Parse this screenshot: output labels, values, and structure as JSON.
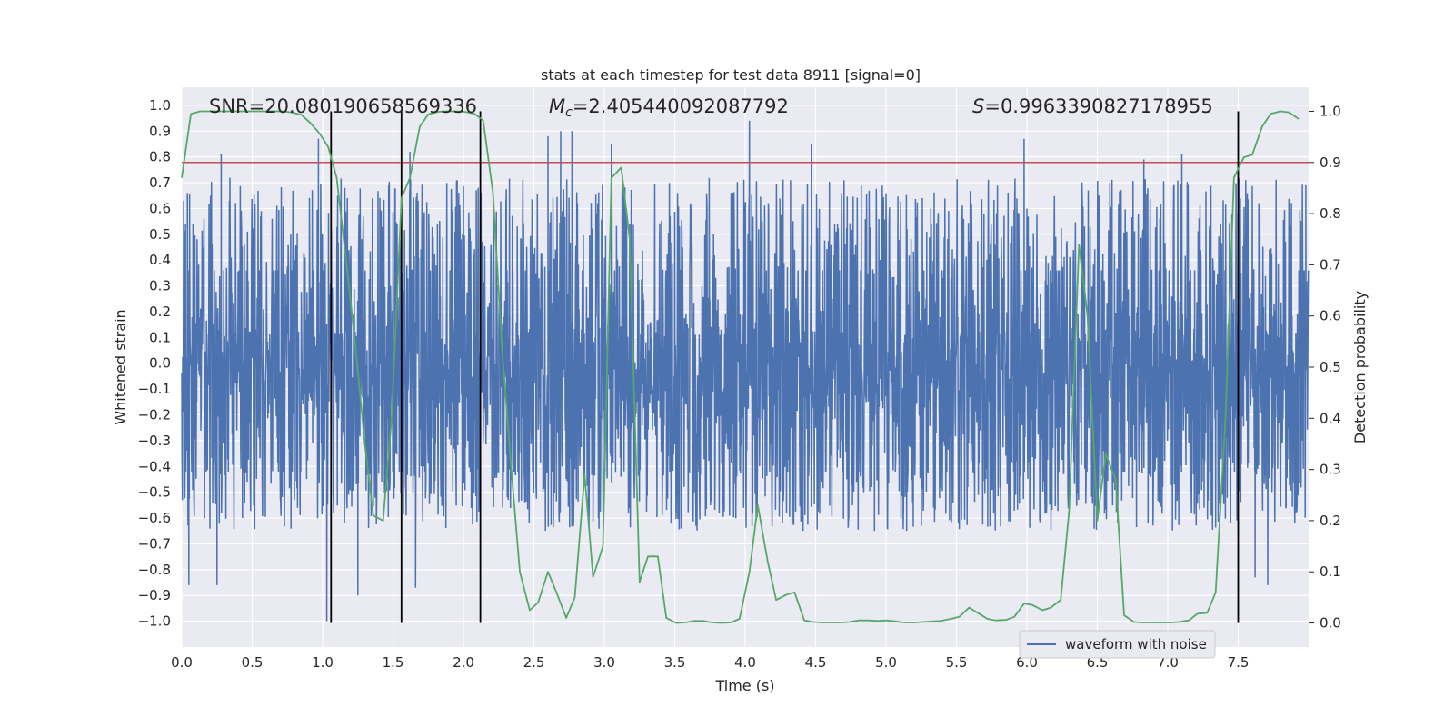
{
  "chart_data": {
    "type": "line",
    "title": "stats at each timestep for test data 8911 [signal=0]",
    "xlabel": "Time (s)",
    "ylabel": "Whitened strain",
    "y2label": "Detection probability",
    "xlim": [
      0.0,
      8.0
    ],
    "ylim": [
      -1.1,
      1.07
    ],
    "y2lim": [
      -0.047,
      1.047
    ],
    "x_ticks": [
      0.0,
      0.5,
      1.0,
      1.5,
      2.0,
      2.5,
      3.0,
      3.5,
      4.0,
      4.5,
      5.0,
      5.5,
      6.0,
      6.5,
      7.0,
      7.5
    ],
    "y_ticks": [
      -1.0,
      -0.9,
      -0.8,
      -0.7,
      -0.6,
      -0.5,
      -0.4,
      -0.3,
      -0.2,
      -0.1,
      0.0,
      0.1,
      0.2,
      0.3,
      0.4,
      0.5,
      0.6,
      0.7,
      0.8,
      0.9,
      1.0
    ],
    "y2_ticks": [
      0.0,
      0.1,
      0.2,
      0.3,
      0.4,
      0.5,
      0.6,
      0.7,
      0.8,
      0.9,
      1.0
    ],
    "tick_labels": {
      "x": [
        "0.0",
        "0.5",
        "1.0",
        "1.5",
        "2.0",
        "2.5",
        "3.0",
        "3.5",
        "4.0",
        "4.5",
        "5.0",
        "5.5",
        "6.0",
        "6.5",
        "7.0",
        "7.5"
      ],
      "y": [
        "−1.0",
        "−0.9",
        "−0.8",
        "−0.7",
        "−0.6",
        "−0.5",
        "−0.4",
        "−0.3",
        "−0.2",
        "−0.1",
        "0.0",
        "0.1",
        "0.2",
        "0.3",
        "0.4",
        "0.5",
        "0.6",
        "0.7",
        "0.8",
        "0.9",
        "1.0"
      ],
      "y2": [
        "0.0",
        "0.1",
        "0.2",
        "0.3",
        "0.4",
        "0.5",
        "0.6",
        "0.7",
        "0.8",
        "0.9",
        "1.0"
      ]
    },
    "annotations": {
      "snr": "SNR=20.080190658569336",
      "mc_symbol": "M",
      "mc_sub": "c",
      "mc_value": "=2.405440092087792",
      "s_symbol": "S",
      "s_value": "=0.9963390827178955"
    },
    "legend": {
      "label": "waveform with noise",
      "position": "lower-right"
    },
    "threshold": {
      "name": "detection threshold",
      "y2": 0.9,
      "color": "#c44e52"
    },
    "event_markers": {
      "name": "trigger times",
      "x": [
        1.06,
        1.56,
        2.12,
        7.5
      ],
      "y2_range": [
        0.0,
        1.0
      ],
      "color": "#000000"
    },
    "waveform": {
      "name": "waveform with noise",
      "color": "#4c72b0",
      "sampling_rate_hz": 2048,
      "duration_s": 8.0,
      "core_band": [
        -0.42,
        0.36
      ],
      "typical_peak_range": [
        -0.65,
        0.72
      ],
      "notable_peaks": [
        {
          "x": 0.04,
          "y": 0.66
        },
        {
          "x": 0.05,
          "y": -0.86
        },
        {
          "x": 0.28,
          "y": 0.81
        },
        {
          "x": 0.25,
          "y": -0.86
        },
        {
          "x": 0.97,
          "y": 0.87
        },
        {
          "x": 1.03,
          "y": -1.0
        },
        {
          "x": 1.25,
          "y": -0.9
        },
        {
          "x": 1.62,
          "y": 0.82
        },
        {
          "x": 1.66,
          "y": -0.87
        },
        {
          "x": 2.69,
          "y": 0.9
        },
        {
          "x": 2.77,
          "y": 0.9
        },
        {
          "x": 2.6,
          "y": 0.88
        },
        {
          "x": 3.05,
          "y": 0.85
        },
        {
          "x": 4.03,
          "y": 0.94
        },
        {
          "x": 4.47,
          "y": 0.85
        },
        {
          "x": 5.98,
          "y": 0.87
        },
        {
          "x": 6.83,
          "y": 0.79
        },
        {
          "x": 7.1,
          "y": 0.81
        },
        {
          "x": 7.62,
          "y": -0.83
        },
        {
          "x": 7.71,
          "y": -0.86
        },
        {
          "x": 7.98,
          "y": 0.69
        }
      ],
      "random_seed": 8911
    },
    "series": [
      {
        "name": "detection probability",
        "color": "#55a868",
        "axis": "y2",
        "x": [
          0.0,
          0.065,
          0.13,
          0.2,
          0.26,
          0.33,
          0.4,
          0.46,
          0.52,
          0.59,
          0.65,
          0.72,
          0.78,
          0.85,
          0.91,
          0.98,
          1.04,
          1.1,
          1.17,
          1.23,
          1.3,
          1.36,
          1.43,
          1.49,
          1.56,
          1.62,
          1.69,
          1.75,
          1.82,
          1.88,
          1.95,
          2.01,
          2.08,
          2.14,
          2.21,
          2.27,
          2.34,
          2.4,
          2.47,
          2.53,
          2.6,
          2.66,
          2.73,
          2.79,
          2.86,
          2.92,
          2.99,
          3.05,
          3.12,
          3.18,
          3.25,
          3.31,
          3.38,
          3.44,
          3.51,
          3.57,
          3.64,
          3.7,
          3.77,
          3.83,
          3.9,
          3.96,
          4.03,
          4.09,
          4.16,
          4.22,
          4.29,
          4.35,
          4.42,
          4.48,
          4.55,
          4.61,
          4.68,
          4.74,
          4.81,
          4.87,
          4.94,
          5.0,
          5.07,
          5.13,
          5.2,
          5.26,
          5.33,
          5.39,
          5.46,
          5.52,
          5.59,
          5.65,
          5.72,
          5.78,
          5.85,
          5.91,
          5.98,
          6.04,
          6.11,
          6.17,
          6.24,
          6.3,
          6.37,
          6.43,
          6.5,
          6.56,
          6.63,
          6.69,
          6.76,
          6.82,
          6.89,
          6.95,
          7.02,
          7.08,
          7.15,
          7.21,
          7.28,
          7.34,
          7.41,
          7.47,
          7.54,
          7.6,
          7.67,
          7.73,
          7.8,
          7.86,
          7.93
        ],
        "values": [
          0.87,
          0.995,
          1.0,
          1.0,
          1.0,
          1.0,
          1.0,
          1.0,
          1.0,
          1.0,
          1.0,
          1.0,
          0.998,
          0.993,
          0.978,
          0.956,
          0.93,
          0.87,
          0.7,
          0.55,
          0.35,
          0.21,
          0.2,
          0.4,
          0.83,
          0.87,
          0.97,
          0.994,
          0.999,
          1.0,
          1.0,
          0.999,
          0.995,
          0.982,
          0.84,
          0.55,
          0.3,
          0.1,
          0.025,
          0.04,
          0.1,
          0.06,
          0.01,
          0.05,
          0.29,
          0.09,
          0.15,
          0.87,
          0.89,
          0.75,
          0.08,
          0.13,
          0.13,
          0.01,
          0.0,
          0.001,
          0.004,
          0.004,
          0.001,
          0.0,
          0.001,
          0.008,
          0.1,
          0.23,
          0.12,
          0.045,
          0.055,
          0.06,
          0.005,
          0.002,
          0.001,
          0.001,
          0.001,
          0.002,
          0.005,
          0.005,
          0.004,
          0.005,
          0.003,
          0.001,
          0.001,
          0.002,
          0.003,
          0.004,
          0.008,
          0.012,
          0.03,
          0.02,
          0.008,
          0.005,
          0.006,
          0.012,
          0.038,
          0.035,
          0.025,
          0.03,
          0.045,
          0.22,
          0.74,
          0.6,
          0.2,
          0.33,
          0.28,
          0.015,
          0.002,
          0.001,
          0.001,
          0.001,
          0.001,
          0.002,
          0.005,
          0.018,
          0.02,
          0.06,
          0.4,
          0.87,
          0.91,
          0.915,
          0.97,
          0.995,
          1.0,
          0.998,
          0.985
        ]
      }
    ]
  }
}
